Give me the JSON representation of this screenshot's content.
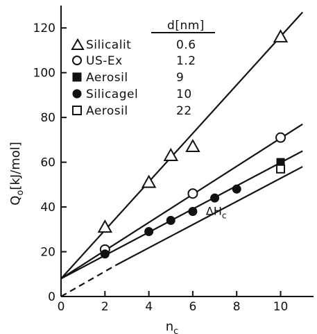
{
  "chart_data": {
    "type": "scatter",
    "xlabel": "n",
    "xlabel_sub": "c",
    "ylabel": "Q",
    "ylabel_sub": "o",
    "ylabel_units": "[kJ/mol]",
    "xlim": [
      0,
      11.5
    ],
    "ylim": [
      0,
      130
    ],
    "x_ticks": [
      0,
      2,
      4,
      6,
      8,
      10
    ],
    "y_ticks": [
      0,
      20,
      40,
      60,
      80,
      100,
      120
    ],
    "grid": false,
    "legend_position": "top-left",
    "legend_header": "d[nm]",
    "series": [
      {
        "name": "Silicalit",
        "d": "0.6",
        "marker": "triangle-open",
        "points": [
          [
            2,
            31
          ],
          [
            4,
            51
          ],
          [
            5,
            63
          ],
          [
            6,
            67
          ],
          [
            10,
            116
          ]
        ]
      },
      {
        "name": "US-Ex",
        "d": "1.2",
        "marker": "circle-open",
        "points": [
          [
            2,
            21
          ],
          [
            6,
            46
          ],
          [
            10,
            71
          ]
        ]
      },
      {
        "name": "Aerosil",
        "d": "9",
        "marker": "square-filled",
        "points": [
          [
            10,
            60
          ]
        ]
      },
      {
        "name": "Silicagel",
        "d": "10",
        "marker": "circle-filled",
        "points": [
          [
            2,
            19
          ],
          [
            4,
            29
          ],
          [
            5,
            34
          ],
          [
            6,
            38
          ],
          [
            7,
            44
          ],
          [
            8,
            48
          ]
        ]
      },
      {
        "name": "Aerosil",
        "d": "22",
        "marker": "square-open",
        "points": [
          [
            10,
            57
          ]
        ]
      }
    ],
    "fit_lines": [
      {
        "for": "Silicalit",
        "from": [
          0,
          8
        ],
        "to": [
          11,
          127
        ],
        "style": "solid"
      },
      {
        "for": "US-Ex",
        "from": [
          0,
          8
        ],
        "to": [
          11,
          77
        ],
        "style": "solid"
      },
      {
        "for": "Silicagel",
        "from": [
          0,
          8
        ],
        "to": [
          11,
          65
        ],
        "style": "solid"
      },
      {
        "for": "dHc",
        "from": [
          2.5,
          14
        ],
        "to": [
          11,
          58
        ],
        "style": "solid"
      },
      {
        "for": "dHc-extrapolation",
        "from": [
          0,
          0
        ],
        "to": [
          2.5,
          14
        ],
        "style": "dashed"
      }
    ],
    "annotations": [
      {
        "text": "ΔH",
        "sub": "c",
        "x": 6.6,
        "y": 36.5
      }
    ]
  }
}
